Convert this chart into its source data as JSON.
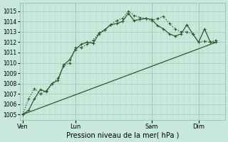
{
  "bg_color": "#c8e8dc",
  "grid_color_major": "#a0c8b8",
  "grid_color_minor": "#b8d8cc",
  "line_color": "#2d5a2d",
  "xlabel": "Pression niveau de la mer( hPa )",
  "ylim": [
    1004.5,
    1015.8
  ],
  "xlim": [
    0,
    35
  ],
  "yticks": [
    1005,
    1006,
    1007,
    1008,
    1009,
    1010,
    1011,
    1012,
    1013,
    1014,
    1015
  ],
  "xtick_labels": [
    "Ven",
    "Lun",
    "Sam",
    "Dim"
  ],
  "xtick_positions": [
    0.5,
    9.5,
    22.5,
    30.5
  ],
  "vline_positions": [
    0.5,
    9.5,
    22.5,
    30.5
  ],
  "line1_x": [
    0.5,
    1.5,
    2.5,
    3.5,
    4.5,
    5.5,
    6.5,
    7.5,
    8.5,
    9.5,
    10.5,
    11.5,
    12.5,
    13.5,
    14.5,
    15.5,
    16.5,
    17.5,
    18.5,
    19.5,
    20.5,
    21.5,
    22.5,
    23.5,
    24.5,
    25.5,
    26.5,
    27.5,
    28.5,
    29.5,
    30.5,
    31.5,
    32.5,
    33.5
  ],
  "line1_y": [
    1005.0,
    1005.4,
    1006.5,
    1007.4,
    1007.2,
    1008.0,
    1008.3,
    1009.8,
    1010.3,
    1011.3,
    1011.8,
    1012.0,
    1011.9,
    1012.8,
    1013.2,
    1013.7,
    1013.8,
    1014.0,
    1014.8,
    1014.1,
    1014.2,
    1014.3,
    1014.2,
    1013.6,
    1013.3,
    1012.8,
    1012.6,
    1012.8,
    1013.7,
    1012.8,
    1012.0,
    1013.3,
    1012.0,
    1012.0
  ],
  "line2_x": [
    0.5,
    1.5,
    2.5,
    3.5,
    4.5,
    5.5,
    6.5,
    7.5,
    8.5,
    9.5,
    10.5,
    11.5,
    12.5,
    13.5,
    14.5,
    15.5,
    16.5,
    17.5,
    18.5,
    19.5,
    20.5,
    21.5,
    22.5,
    23.5,
    24.5,
    25.5,
    26.5,
    27.5,
    28.5,
    29.5,
    30.5,
    31.5,
    32.5,
    33.5
  ],
  "line2_y": [
    1005.0,
    1006.5,
    1007.5,
    1007.0,
    1007.3,
    1008.0,
    1008.5,
    1009.7,
    1010.0,
    1011.5,
    1011.5,
    1011.8,
    1012.2,
    1012.9,
    1013.2,
    1013.7,
    1014.1,
    1014.3,
    1015.0,
    1014.6,
    1014.4,
    1014.3,
    1014.1,
    1014.3,
    1014.5,
    1013.8,
    1013.3,
    1013.0,
    1013.0,
    1012.8,
    1012.0,
    1012.1,
    1012.0,
    1012.2
  ],
  "line3_x": [
    0.5,
    33.5
  ],
  "line3_y": [
    1005.0,
    1012.0
  ]
}
